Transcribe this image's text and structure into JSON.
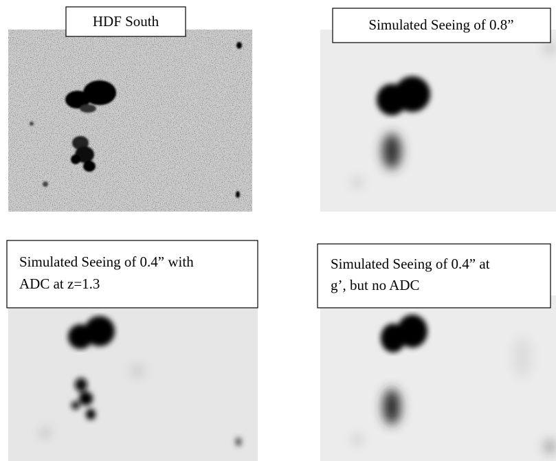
{
  "panels": [
    {
      "label": [
        "HDF South"
      ]
    },
    {
      "label": [
        "Simulated Seeing of 0.8”"
      ]
    },
    {
      "label": [
        "Simulated Seeing of 0.4” with",
        "ADC at z=1.3"
      ]
    },
    {
      "label": [
        "Simulated Seeing of 0.4” at",
        "g’, but no ADC"
      ]
    }
  ]
}
